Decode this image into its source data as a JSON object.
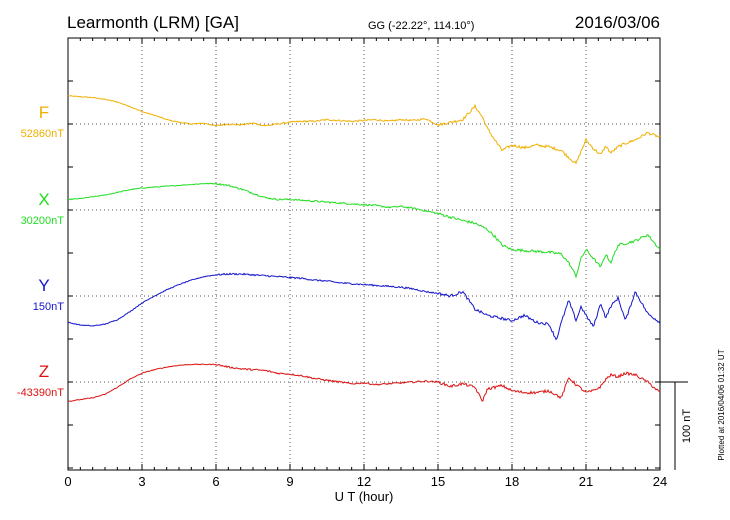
{
  "header": {
    "station": "Learmonth (LRM)  [GA]",
    "coords": "GG (-22.22°, 114.10°)",
    "date": "2016/03/06"
  },
  "footer": {
    "plotted_note": "Plotted at 2016/04/06 01:32 UT"
  },
  "colors": {
    "F": "#f0b000",
    "X": "#22dd22",
    "Y": "#1414cc",
    "Z": "#dd1111"
  },
  "chart_data": {
    "type": "line",
    "title": "Learmonth (LRM)  [GA]",
    "xlabel": "U T (hour)",
    "ylabel": "",
    "xlim": [
      0,
      24
    ],
    "x_ticks": [
      "0",
      "3",
      "6",
      "9",
      "12",
      "15",
      "18",
      "21",
      "24"
    ],
    "grid": true,
    "scale_bar": {
      "label": "100 nT",
      "value": 100
    },
    "series": [
      {
        "name": "F",
        "key": "F",
        "baseline_label": "52860nT",
        "x": [
          0,
          0.5,
          1,
          1.5,
          2,
          2.5,
          3,
          3.5,
          4,
          4.5,
          5,
          5.5,
          6,
          6.5,
          7,
          7.5,
          8,
          8.5,
          9,
          9.5,
          10,
          10.5,
          11,
          11.5,
          12,
          12.5,
          13,
          13.5,
          14,
          14.5,
          15,
          15.5,
          16,
          16.5,
          16.8,
          17,
          17.3,
          17.6,
          18,
          18.5,
          19,
          19.5,
          20,
          20.3,
          20.6,
          20.8,
          21,
          21.3,
          21.6,
          21.8,
          22,
          22.3,
          22.6,
          23,
          23.5,
          24
        ],
        "values": [
          32,
          31,
          30,
          28,
          25,
          20,
          14,
          10,
          5,
          2,
          0,
          1,
          -2,
          0,
          -1,
          1,
          -2,
          0,
          2,
          3,
          3,
          5,
          4,
          3,
          4,
          5,
          3,
          5,
          4,
          6,
          -1,
          2,
          5,
          20,
          8,
          -5,
          -18,
          -30,
          -24,
          -27,
          -24,
          -26,
          -30,
          -38,
          -45,
          -31,
          -18,
          -28,
          -35,
          -25,
          -33,
          -26,
          -22,
          -18,
          -10,
          -15
        ]
      },
      {
        "name": "X",
        "key": "X",
        "baseline_label": "30200nT",
        "x": [
          0,
          0.5,
          1,
          1.5,
          2,
          2.5,
          3,
          3.5,
          4,
          4.5,
          5,
          5.5,
          6,
          6.5,
          7,
          7.5,
          8,
          8.5,
          9,
          9.5,
          10,
          10.5,
          11,
          11.5,
          12,
          12.5,
          13,
          13.5,
          14,
          14.5,
          15,
          15.5,
          16,
          16.5,
          17,
          17.3,
          17.6,
          18,
          18.5,
          19,
          19.5,
          20,
          20.3,
          20.6,
          20.8,
          21,
          21.3,
          21.6,
          21.8,
          22,
          22.3,
          22.6,
          23,
          23.5,
          24
        ],
        "values": [
          12,
          13,
          15,
          17,
          20,
          23,
          25,
          26,
          27,
          28,
          29,
          30,
          30,
          28,
          24,
          19,
          14,
          12,
          12,
          11,
          10,
          9,
          8,
          7,
          6,
          5,
          3,
          4,
          2,
          -1,
          -4,
          -8,
          -12,
          -15,
          -22,
          -30,
          -40,
          -45,
          -46,
          -47,
          -48,
          -50,
          -60,
          -75,
          -55,
          -45,
          -55,
          -65,
          -50,
          -60,
          -40,
          -38,
          -35,
          -28,
          -45
        ]
      },
      {
        "name": "Y",
        "key": "Y",
        "baseline_label": "150nT",
        "x": [
          0,
          0.5,
          1,
          1.5,
          2,
          2.5,
          3,
          3.5,
          4,
          4.5,
          5,
          5.5,
          6,
          6.5,
          7,
          7.5,
          8,
          8.5,
          9,
          9.5,
          10,
          10.5,
          11,
          11.5,
          12,
          12.5,
          13,
          13.5,
          14,
          14.5,
          15,
          15.5,
          16,
          16.5,
          17,
          17.5,
          18,
          18.5,
          19,
          19.5,
          19.8,
          20,
          20.3,
          20.6,
          20.8,
          21,
          21.3,
          21.6,
          21.8,
          22,
          22.3,
          22.6,
          23,
          23.5,
          24
        ],
        "values": [
          -30,
          -33,
          -34,
          -32,
          -27,
          -18,
          -8,
          0,
          7,
          13,
          18,
          22,
          24,
          25,
          25,
          24,
          23,
          22,
          21,
          20,
          18,
          17,
          15,
          14,
          13,
          12,
          11,
          10,
          8,
          5,
          3,
          0,
          5,
          -15,
          -22,
          -25,
          -28,
          -22,
          -30,
          -32,
          -50,
          -30,
          -5,
          -28,
          -12,
          -22,
          -35,
          -8,
          -25,
          -12,
          -2,
          -28,
          5,
          -20,
          -30
        ]
      },
      {
        "name": "Z",
        "key": "Z",
        "baseline_label": "-43390nT",
        "x": [
          0,
          0.5,
          1,
          1.5,
          2,
          2.5,
          3,
          3.5,
          4,
          4.5,
          5,
          5.5,
          6,
          6.5,
          7,
          7.5,
          8,
          8.5,
          9,
          9.5,
          10,
          10.5,
          11,
          11.5,
          12,
          12.5,
          13,
          13.5,
          14,
          14.5,
          15,
          15.5,
          16,
          16.5,
          16.8,
          17,
          17.3,
          17.6,
          18,
          18.5,
          19,
          19.5,
          20,
          20.3,
          20.6,
          21,
          21.3,
          21.6,
          21.8,
          22,
          22.3,
          22.6,
          23,
          23.5,
          24
        ],
        "values": [
          -22,
          -20,
          -18,
          -14,
          -6,
          3,
          10,
          14,
          17,
          19,
          20,
          20,
          20,
          17,
          15,
          14,
          13,
          10,
          9,
          7,
          4,
          2,
          0,
          -2,
          -1,
          -3,
          -2,
          -1,
          0,
          1,
          0,
          -5,
          -2,
          -6,
          -22,
          -8,
          -6,
          -4,
          -10,
          -12,
          -12,
          -10,
          -18,
          5,
          -3,
          -12,
          -10,
          -5,
          3,
          8,
          6,
          10,
          8,
          0,
          -12
        ]
      }
    ]
  }
}
